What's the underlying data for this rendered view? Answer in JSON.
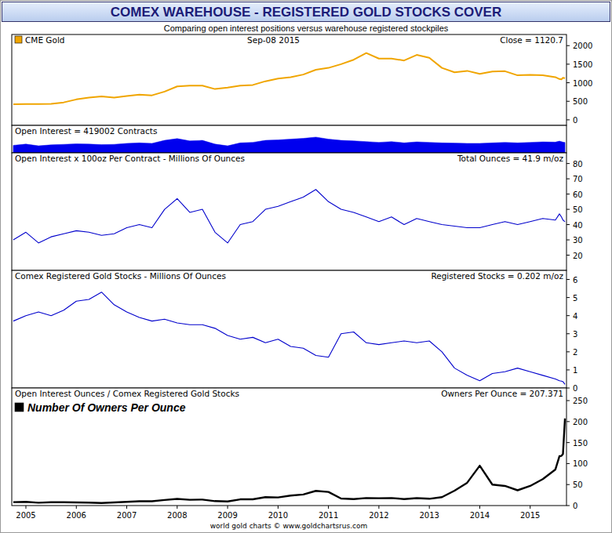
{
  "title": "COMEX WAREHOUSE - REGISTERED GOLD STOCKS COVER",
  "subtitle": "Comparing open interest positions versus warehouse registered stockpiles",
  "footer": "world gold charts © www.goldchartsrus.com",
  "chart_data": [
    {
      "type": "line",
      "x": [
        2004.75,
        2005,
        2005.25,
        2005.5,
        2005.75,
        2006,
        2006.25,
        2006.5,
        2006.75,
        2007,
        2007.25,
        2007.5,
        2007.75,
        2008,
        2008.25,
        2008.5,
        2008.75,
        2009,
        2009.25,
        2009.5,
        2009.75,
        2010,
        2010.25,
        2010.5,
        2010.75,
        2011,
        2011.25,
        2011.5,
        2011.75,
        2012,
        2012.25,
        2012.5,
        2012.75,
        2013,
        2013.25,
        2013.5,
        2013.75,
        2014,
        2014.25,
        2014.5,
        2014.75,
        2015,
        2015.25,
        2015.5,
        2015.58,
        2015.62,
        2015.65,
        2015.69
      ],
      "series": [
        {
          "name": "CME Gold",
          "color": "#f0a500",
          "values": [
            420,
            425,
            428,
            432,
            470,
            550,
            600,
            630,
            600,
            640,
            680,
            660,
            760,
            900,
            920,
            920,
            830,
            870,
            920,
            940,
            1040,
            1110,
            1150,
            1220,
            1350,
            1400,
            1500,
            1620,
            1800,
            1650,
            1650,
            1600,
            1750,
            1670,
            1400,
            1280,
            1320,
            1240,
            1300,
            1310,
            1200,
            1210,
            1200,
            1150,
            1100,
            1090,
            1135,
            1120.7
          ]
        }
      ],
      "annotations": [
        "Sep-08 2015",
        "Close = 1120.7"
      ],
      "legend": "upper left",
      "xlim": [
        2004.72,
        2015.72
      ],
      "ylim": [
        -150,
        2300
      ],
      "yticks": [
        0,
        500,
        1000,
        1500,
        2000
      ],
      "tick_labels": "y"
    },
    {
      "type": "area",
      "title": "Open Interest = 419002 Contracts",
      "x": [
        2004.75,
        2005,
        2005.25,
        2005.5,
        2005.75,
        2006,
        2006.25,
        2006.5,
        2006.75,
        2007,
        2007.25,
        2007.5,
        2007.75,
        2008,
        2008.25,
        2008.5,
        2008.75,
        2009,
        2009.25,
        2009.5,
        2009.75,
        2010,
        2010.25,
        2010.5,
        2010.75,
        2011,
        2011.25,
        2011.5,
        2011.75,
        2012,
        2012.25,
        2012.5,
        2012.75,
        2013,
        2013.25,
        2013.5,
        2013.75,
        2014,
        2014.25,
        2014.5,
        2014.75,
        2015,
        2015.25,
        2015.5,
        2015.58,
        2015.62,
        2015.65,
        2015.69
      ],
      "series": [
        {
          "color": "#0000ee",
          "values": [
            300000,
            350000,
            280000,
            320000,
            340000,
            360000,
            350000,
            330000,
            340000,
            380000,
            400000,
            380000,
            500000,
            570000,
            480000,
            500000,
            350000,
            280000,
            400000,
            420000,
            500000,
            520000,
            550000,
            580000,
            630000,
            550000,
            500000,
            480000,
            450000,
            420000,
            450000,
            400000,
            440000,
            420000,
            400000,
            390000,
            380000,
            380000,
            400000,
            420000,
            400000,
            420000,
            440000,
            430000,
            470000,
            450000,
            430000,
            419002
          ]
        }
      ],
      "xlim": [
        2004.72,
        2015.72
      ],
      "ylim": [
        0,
        1100000
      ],
      "tick_labels": false
    },
    {
      "type": "line",
      "title": "Open Interest x 100oz Per Contract - Millions Of Ounces",
      "annotations": [
        "Total Ounces = 41.9 m/oz"
      ],
      "x": [
        2004.75,
        2005,
        2005.25,
        2005.5,
        2005.75,
        2006,
        2006.25,
        2006.5,
        2006.75,
        2007,
        2007.25,
        2007.5,
        2007.75,
        2008,
        2008.25,
        2008.5,
        2008.75,
        2009,
        2009.25,
        2009.5,
        2009.75,
        2010,
        2010.25,
        2010.5,
        2010.75,
        2011,
        2011.25,
        2011.5,
        2011.75,
        2012,
        2012.25,
        2012.5,
        2012.75,
        2013,
        2013.25,
        2013.5,
        2013.75,
        2014,
        2014.25,
        2014.5,
        2014.75,
        2015,
        2015.25,
        2015.5,
        2015.58,
        2015.62,
        2015.65,
        2015.69
      ],
      "series": [
        {
          "color": "#0000cc",
          "values": [
            30,
            35,
            28,
            32,
            34,
            36,
            35,
            33,
            34,
            38,
            40,
            38,
            50,
            57,
            48,
            50,
            35,
            28,
            40,
            42,
            50,
            52,
            55,
            58,
            63,
            55,
            50,
            48,
            45,
            42,
            45,
            40,
            44,
            42,
            40,
            39,
            38,
            38,
            40,
            42,
            40,
            42,
            44,
            43,
            47,
            45,
            43,
            41.9
          ]
        }
      ],
      "xlim": [
        2004.72,
        2015.72
      ],
      "ylim": [
        10,
        87
      ],
      "yticks": [
        20,
        30,
        40,
        50,
        60,
        70,
        80
      ],
      "tick_labels": "y"
    },
    {
      "type": "line",
      "title": "Comex Registered Gold Stocks - Millions Of Ounces",
      "annotations": [
        "Registered Stocks = 0.202 m/oz"
      ],
      "x": [
        2004.75,
        2005,
        2005.25,
        2005.5,
        2005.75,
        2006,
        2006.25,
        2006.5,
        2006.75,
        2007,
        2007.25,
        2007.5,
        2007.75,
        2008,
        2008.25,
        2008.5,
        2008.75,
        2009,
        2009.25,
        2009.5,
        2009.75,
        2010,
        2010.25,
        2010.5,
        2010.75,
        2011,
        2011.25,
        2011.5,
        2011.75,
        2012,
        2012.25,
        2012.5,
        2012.75,
        2013,
        2013.25,
        2013.5,
        2013.75,
        2014,
        2014.25,
        2014.5,
        2014.75,
        2015,
        2015.25,
        2015.5,
        2015.58,
        2015.62,
        2015.65,
        2015.69
      ],
      "series": [
        {
          "color": "#0000cc",
          "values": [
            3.7,
            4.0,
            4.2,
            4.0,
            4.3,
            4.8,
            4.9,
            5.3,
            4.6,
            4.2,
            3.9,
            3.7,
            3.8,
            3.6,
            3.5,
            3.5,
            3.3,
            2.9,
            2.7,
            2.8,
            2.5,
            2.7,
            2.3,
            2.2,
            1.8,
            1.7,
            3.0,
            3.1,
            2.5,
            2.4,
            2.5,
            2.6,
            2.5,
            2.6,
            2.0,
            1.1,
            0.7,
            0.4,
            0.8,
            0.9,
            1.1,
            0.9,
            0.7,
            0.5,
            0.4,
            0.38,
            0.35,
            0.202
          ]
        }
      ],
      "xlim": [
        2004.72,
        2015.72
      ],
      "ylim": [
        0,
        6.5
      ],
      "yticks": [
        0,
        1,
        2,
        3,
        4,
        5,
        6
      ],
      "tick_labels": "y"
    },
    {
      "type": "line",
      "title": "Open Interest Ounces / Comex Registered Gold Stocks",
      "annotations": [
        "Owners Per Ounce = 207.371"
      ],
      "x": [
        2004.75,
        2005,
        2005.25,
        2005.5,
        2005.75,
        2006,
        2006.25,
        2006.5,
        2006.75,
        2007,
        2007.25,
        2007.5,
        2007.75,
        2008,
        2008.25,
        2008.5,
        2008.75,
        2009,
        2009.25,
        2009.5,
        2009.75,
        2010,
        2010.25,
        2010.5,
        2010.75,
        2011,
        2011.25,
        2011.5,
        2011.75,
        2012,
        2012.25,
        2012.5,
        2012.75,
        2013,
        2013.25,
        2013.5,
        2013.75,
        2014,
        2014.25,
        2014.5,
        2014.75,
        2015,
        2015.25,
        2015.5,
        2015.58,
        2015.62,
        2015.65,
        2015.69
      ],
      "series": [
        {
          "name": "Number Of Owners Per Ounce",
          "color": "#000000",
          "values": [
            8.1,
            8.8,
            6.7,
            8,
            7.9,
            7.5,
            7.1,
            6.2,
            7.4,
            9.0,
            10.3,
            10.3,
            13.2,
            15.8,
            13.7,
            14.3,
            10.6,
            9.7,
            14.8,
            15,
            20,
            19.3,
            23.9,
            26.4,
            35,
            32.4,
            16.7,
            15.5,
            18,
            17.5,
            18,
            15.4,
            17.6,
            16.2,
            20,
            35.5,
            54.3,
            95,
            50,
            46.7,
            36.4,
            46.7,
            62.9,
            86,
            117.5,
            118.4,
            122.9,
            207.371
          ]
        }
      ],
      "legend": "upper left",
      "xlim": [
        2004.72,
        2015.72
      ],
      "ylim": [
        0,
        280
      ],
      "yticks": [
        0,
        50,
        100,
        150,
        200,
        250
      ],
      "xticks": [
        2005,
        2006,
        2007,
        2008,
        2009,
        2010,
        2011,
        2012,
        2013,
        2014,
        2015
      ]
    }
  ]
}
